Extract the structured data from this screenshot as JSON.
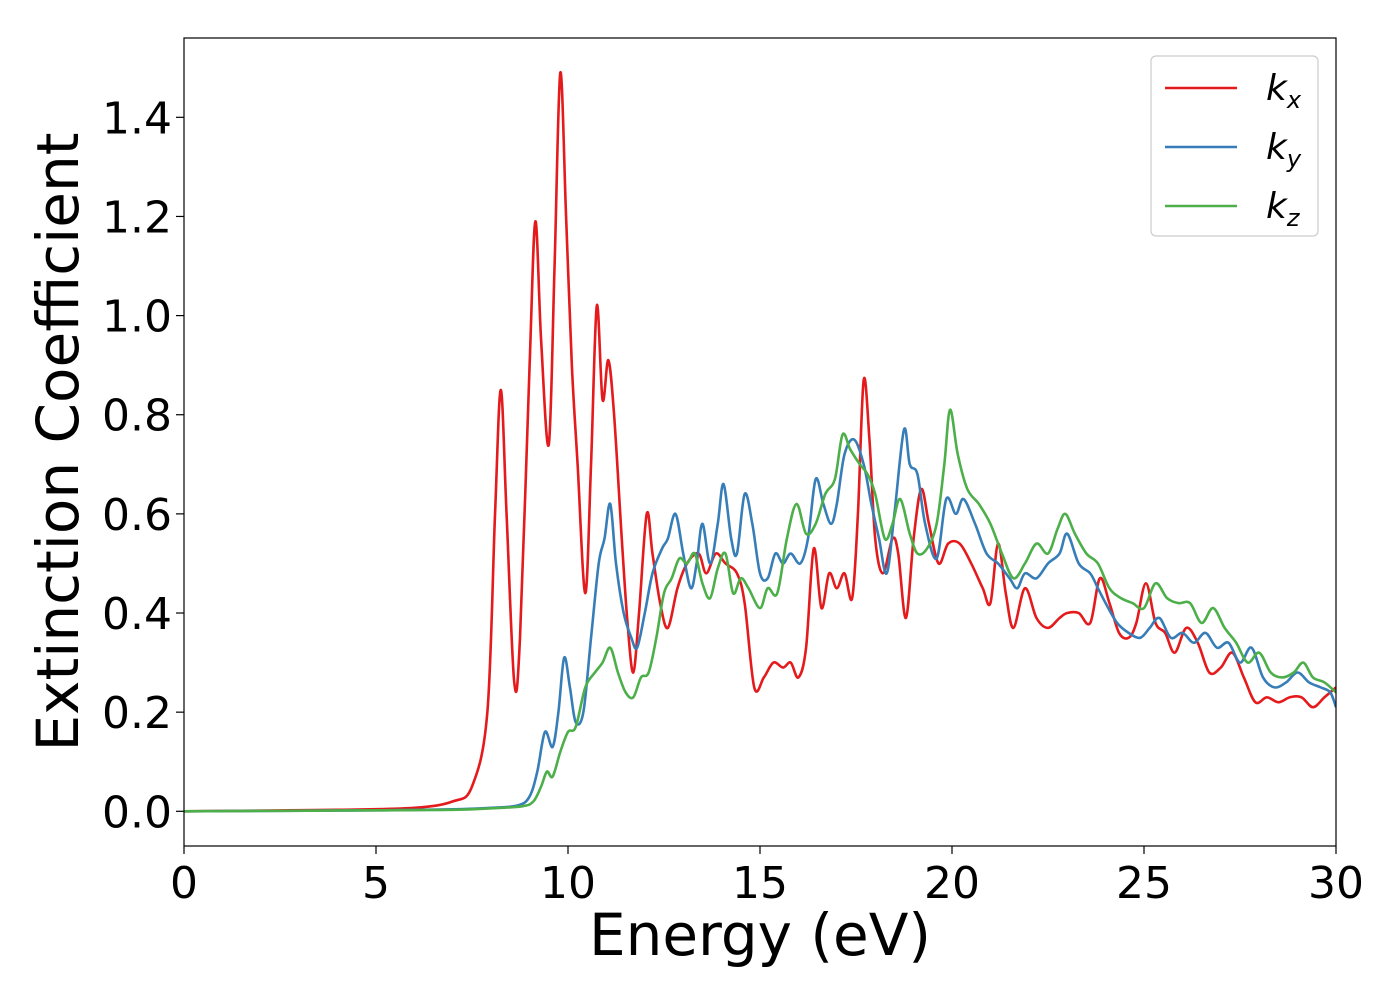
{
  "chart_data": {
    "type": "line",
    "xlabel": "Energy (eV)",
    "ylabel": "Extinction Coefficient",
    "xlim": [
      0,
      30
    ],
    "ylim": [
      -0.07,
      1.56
    ],
    "xticks": [
      0,
      5,
      10,
      15,
      20,
      25,
      30
    ],
    "xtick_labels": [
      "0",
      "5",
      "10",
      "15",
      "20",
      "25",
      "30"
    ],
    "yticks": [
      0.0,
      0.2,
      0.4,
      0.6,
      0.8,
      1.0,
      1.2,
      1.4
    ],
    "ytick_labels": [
      "0.0",
      "0.2",
      "0.4",
      "0.6",
      "0.8",
      "1.0",
      "1.2",
      "1.4"
    ],
    "grid": false,
    "legend_position": "top-right",
    "series": [
      {
        "name": "k",
        "subscript": "x",
        "color": "#e41a1c",
        "points": [
          [
            0,
            0
          ],
          [
            4,
            0.003
          ],
          [
            6,
            0.007
          ],
          [
            7,
            0.02
          ],
          [
            7.5,
            0.05
          ],
          [
            7.9,
            0.2
          ],
          [
            8.1,
            0.6
          ],
          [
            8.25,
            0.85
          ],
          [
            8.4,
            0.6
          ],
          [
            8.6,
            0.26
          ],
          [
            8.75,
            0.35
          ],
          [
            9.0,
            0.9
          ],
          [
            9.15,
            1.19
          ],
          [
            9.3,
            0.95
          ],
          [
            9.5,
            0.74
          ],
          [
            9.65,
            1.1
          ],
          [
            9.8,
            1.49
          ],
          [
            9.95,
            1.2
          ],
          [
            10.1,
            0.9
          ],
          [
            10.25,
            0.7
          ],
          [
            10.45,
            0.44
          ],
          [
            10.6,
            0.7
          ],
          [
            10.75,
            1.02
          ],
          [
            10.9,
            0.83
          ],
          [
            11.05,
            0.91
          ],
          [
            11.2,
            0.8
          ],
          [
            11.4,
            0.55
          ],
          [
            11.55,
            0.38
          ],
          [
            11.7,
            0.28
          ],
          [
            11.85,
            0.4
          ],
          [
            12.05,
            0.6
          ],
          [
            12.2,
            0.52
          ],
          [
            12.4,
            0.42
          ],
          [
            12.6,
            0.37
          ],
          [
            12.85,
            0.45
          ],
          [
            13.1,
            0.5
          ],
          [
            13.4,
            0.52
          ],
          [
            13.6,
            0.48
          ],
          [
            13.85,
            0.52
          ],
          [
            14.1,
            0.5
          ],
          [
            14.4,
            0.48
          ],
          [
            14.6,
            0.42
          ],
          [
            14.85,
            0.25
          ],
          [
            15.1,
            0.27
          ],
          [
            15.35,
            0.3
          ],
          [
            15.6,
            0.29
          ],
          [
            15.8,
            0.3
          ],
          [
            16.0,
            0.27
          ],
          [
            16.2,
            0.33
          ],
          [
            16.4,
            0.53
          ],
          [
            16.6,
            0.41
          ],
          [
            16.8,
            0.48
          ],
          [
            17.0,
            0.45
          ],
          [
            17.2,
            0.48
          ],
          [
            17.4,
            0.43
          ],
          [
            17.55,
            0.6
          ],
          [
            17.7,
            0.87
          ],
          [
            17.85,
            0.75
          ],
          [
            18.0,
            0.55
          ],
          [
            18.2,
            0.48
          ],
          [
            18.45,
            0.55
          ],
          [
            18.6,
            0.52
          ],
          [
            18.8,
            0.39
          ],
          [
            19.0,
            0.55
          ],
          [
            19.2,
            0.65
          ],
          [
            19.4,
            0.58
          ],
          [
            19.65,
            0.5
          ],
          [
            19.9,
            0.54
          ],
          [
            20.2,
            0.54
          ],
          [
            20.5,
            0.5
          ],
          [
            20.8,
            0.45
          ],
          [
            21.0,
            0.42
          ],
          [
            21.2,
            0.54
          ],
          [
            21.4,
            0.44
          ],
          [
            21.6,
            0.37
          ],
          [
            21.9,
            0.45
          ],
          [
            22.2,
            0.39
          ],
          [
            22.5,
            0.37
          ],
          [
            22.8,
            0.39
          ],
          [
            23.0,
            0.4
          ],
          [
            23.3,
            0.4
          ],
          [
            23.6,
            0.38
          ],
          [
            23.85,
            0.47
          ],
          [
            24.1,
            0.42
          ],
          [
            24.35,
            0.36
          ],
          [
            24.6,
            0.35
          ],
          [
            24.8,
            0.38
          ],
          [
            25.05,
            0.46
          ],
          [
            25.3,
            0.38
          ],
          [
            25.55,
            0.36
          ],
          [
            25.8,
            0.32
          ],
          [
            26.1,
            0.37
          ],
          [
            26.4,
            0.34
          ],
          [
            26.7,
            0.28
          ],
          [
            27.0,
            0.29
          ],
          [
            27.3,
            0.32
          ],
          [
            27.6,
            0.27
          ],
          [
            27.9,
            0.22
          ],
          [
            28.2,
            0.23
          ],
          [
            28.5,
            0.22
          ],
          [
            28.8,
            0.23
          ],
          [
            29.1,
            0.23
          ],
          [
            29.4,
            0.21
          ],
          [
            29.7,
            0.23
          ],
          [
            30.0,
            0.25
          ]
        ]
      },
      {
        "name": "k",
        "subscript": "y",
        "color": "#377eb8",
        "points": [
          [
            0,
            0
          ],
          [
            5,
            0.002
          ],
          [
            7,
            0.004
          ],
          [
            8,
            0.007
          ],
          [
            8.7,
            0.012
          ],
          [
            9.0,
            0.03
          ],
          [
            9.2,
            0.08
          ],
          [
            9.4,
            0.16
          ],
          [
            9.6,
            0.13
          ],
          [
            9.75,
            0.2
          ],
          [
            9.9,
            0.31
          ],
          [
            10.05,
            0.25
          ],
          [
            10.2,
            0.18
          ],
          [
            10.4,
            0.2
          ],
          [
            10.6,
            0.35
          ],
          [
            10.8,
            0.5
          ],
          [
            10.95,
            0.55
          ],
          [
            11.1,
            0.62
          ],
          [
            11.25,
            0.5
          ],
          [
            11.45,
            0.4
          ],
          [
            11.65,
            0.35
          ],
          [
            11.8,
            0.33
          ],
          [
            12.0,
            0.4
          ],
          [
            12.2,
            0.48
          ],
          [
            12.45,
            0.53
          ],
          [
            12.6,
            0.55
          ],
          [
            12.8,
            0.6
          ],
          [
            13.0,
            0.52
          ],
          [
            13.2,
            0.45
          ],
          [
            13.35,
            0.5
          ],
          [
            13.5,
            0.58
          ],
          [
            13.7,
            0.5
          ],
          [
            13.9,
            0.58
          ],
          [
            14.05,
            0.66
          ],
          [
            14.25,
            0.55
          ],
          [
            14.4,
            0.52
          ],
          [
            14.6,
            0.64
          ],
          [
            14.8,
            0.58
          ],
          [
            15.0,
            0.48
          ],
          [
            15.2,
            0.47
          ],
          [
            15.4,
            0.52
          ],
          [
            15.6,
            0.5
          ],
          [
            15.8,
            0.52
          ],
          [
            16.05,
            0.5
          ],
          [
            16.25,
            0.55
          ],
          [
            16.45,
            0.67
          ],
          [
            16.65,
            0.62
          ],
          [
            16.85,
            0.58
          ],
          [
            17.0,
            0.62
          ],
          [
            17.2,
            0.72
          ],
          [
            17.45,
            0.75
          ],
          [
            17.7,
            0.7
          ],
          [
            17.9,
            0.62
          ],
          [
            18.1,
            0.55
          ],
          [
            18.3,
            0.48
          ],
          [
            18.5,
            0.6
          ],
          [
            18.75,
            0.77
          ],
          [
            18.9,
            0.7
          ],
          [
            19.1,
            0.68
          ],
          [
            19.3,
            0.58
          ],
          [
            19.6,
            0.51
          ],
          [
            19.85,
            0.63
          ],
          [
            20.1,
            0.6
          ],
          [
            20.3,
            0.63
          ],
          [
            20.6,
            0.58
          ],
          [
            20.9,
            0.52
          ],
          [
            21.2,
            0.5
          ],
          [
            21.5,
            0.47
          ],
          [
            21.7,
            0.45
          ],
          [
            21.9,
            0.48
          ],
          [
            22.2,
            0.47
          ],
          [
            22.5,
            0.5
          ],
          [
            22.8,
            0.52
          ],
          [
            23.0,
            0.56
          ],
          [
            23.3,
            0.5
          ],
          [
            23.6,
            0.48
          ],
          [
            23.8,
            0.45
          ],
          [
            24.0,
            0.42
          ],
          [
            24.3,
            0.38
          ],
          [
            24.6,
            0.36
          ],
          [
            24.9,
            0.35
          ],
          [
            25.15,
            0.37
          ],
          [
            25.4,
            0.39
          ],
          [
            25.7,
            0.35
          ],
          [
            26.0,
            0.36
          ],
          [
            26.3,
            0.34
          ],
          [
            26.6,
            0.36
          ],
          [
            26.9,
            0.33
          ],
          [
            27.2,
            0.34
          ],
          [
            27.5,
            0.3
          ],
          [
            27.8,
            0.33
          ],
          [
            28.1,
            0.27
          ],
          [
            28.4,
            0.25
          ],
          [
            28.7,
            0.26
          ],
          [
            29.0,
            0.28
          ],
          [
            29.3,
            0.26
          ],
          [
            29.6,
            0.25
          ],
          [
            29.85,
            0.24
          ],
          [
            30.0,
            0.21
          ]
        ]
      },
      {
        "name": "k",
        "subscript": "z",
        "color": "#4daf4a",
        "points": [
          [
            0,
            0
          ],
          [
            5,
            0.002
          ],
          [
            7,
            0.003
          ],
          [
            8,
            0.006
          ],
          [
            8.8,
            0.01
          ],
          [
            9.1,
            0.02
          ],
          [
            9.3,
            0.05
          ],
          [
            9.45,
            0.08
          ],
          [
            9.6,
            0.07
          ],
          [
            9.8,
            0.12
          ],
          [
            10.0,
            0.16
          ],
          [
            10.2,
            0.17
          ],
          [
            10.45,
            0.25
          ],
          [
            10.7,
            0.28
          ],
          [
            10.9,
            0.3
          ],
          [
            11.1,
            0.33
          ],
          [
            11.3,
            0.28
          ],
          [
            11.5,
            0.24
          ],
          [
            11.7,
            0.23
          ],
          [
            11.9,
            0.27
          ],
          [
            12.1,
            0.28
          ],
          [
            12.3,
            0.35
          ],
          [
            12.5,
            0.44
          ],
          [
            12.7,
            0.47
          ],
          [
            12.9,
            0.51
          ],
          [
            13.1,
            0.5
          ],
          [
            13.3,
            0.52
          ],
          [
            13.5,
            0.46
          ],
          [
            13.7,
            0.43
          ],
          [
            13.9,
            0.49
          ],
          [
            14.1,
            0.52
          ],
          [
            14.3,
            0.44
          ],
          [
            14.5,
            0.47
          ],
          [
            14.7,
            0.45
          ],
          [
            15.0,
            0.41
          ],
          [
            15.2,
            0.45
          ],
          [
            15.45,
            0.44
          ],
          [
            15.7,
            0.55
          ],
          [
            15.95,
            0.62
          ],
          [
            16.2,
            0.56
          ],
          [
            16.45,
            0.58
          ],
          [
            16.7,
            0.64
          ],
          [
            16.95,
            0.67
          ],
          [
            17.15,
            0.76
          ],
          [
            17.35,
            0.73
          ],
          [
            17.6,
            0.7
          ],
          [
            17.8,
            0.68
          ],
          [
            18.0,
            0.64
          ],
          [
            18.25,
            0.55
          ],
          [
            18.45,
            0.58
          ],
          [
            18.65,
            0.63
          ],
          [
            18.9,
            0.56
          ],
          [
            19.1,
            0.52
          ],
          [
            19.35,
            0.53
          ],
          [
            19.6,
            0.58
          ],
          [
            19.8,
            0.7
          ],
          [
            19.95,
            0.81
          ],
          [
            20.15,
            0.72
          ],
          [
            20.4,
            0.65
          ],
          [
            20.7,
            0.62
          ],
          [
            21.0,
            0.58
          ],
          [
            21.3,
            0.52
          ],
          [
            21.6,
            0.47
          ],
          [
            21.9,
            0.5
          ],
          [
            22.2,
            0.54
          ],
          [
            22.5,
            0.52
          ],
          [
            22.75,
            0.57
          ],
          [
            22.95,
            0.6
          ],
          [
            23.2,
            0.56
          ],
          [
            23.5,
            0.52
          ],
          [
            23.8,
            0.5
          ],
          [
            24.1,
            0.45
          ],
          [
            24.4,
            0.43
          ],
          [
            24.7,
            0.42
          ],
          [
            25.0,
            0.41
          ],
          [
            25.3,
            0.46
          ],
          [
            25.6,
            0.43
          ],
          [
            25.9,
            0.42
          ],
          [
            26.2,
            0.42
          ],
          [
            26.5,
            0.38
          ],
          [
            26.8,
            0.41
          ],
          [
            27.1,
            0.37
          ],
          [
            27.4,
            0.34
          ],
          [
            27.7,
            0.3
          ],
          [
            28.0,
            0.32
          ],
          [
            28.3,
            0.28
          ],
          [
            28.6,
            0.27
          ],
          [
            28.9,
            0.28
          ],
          [
            29.15,
            0.3
          ],
          [
            29.4,
            0.27
          ],
          [
            29.7,
            0.26
          ],
          [
            30.0,
            0.24
          ]
        ]
      }
    ]
  }
}
